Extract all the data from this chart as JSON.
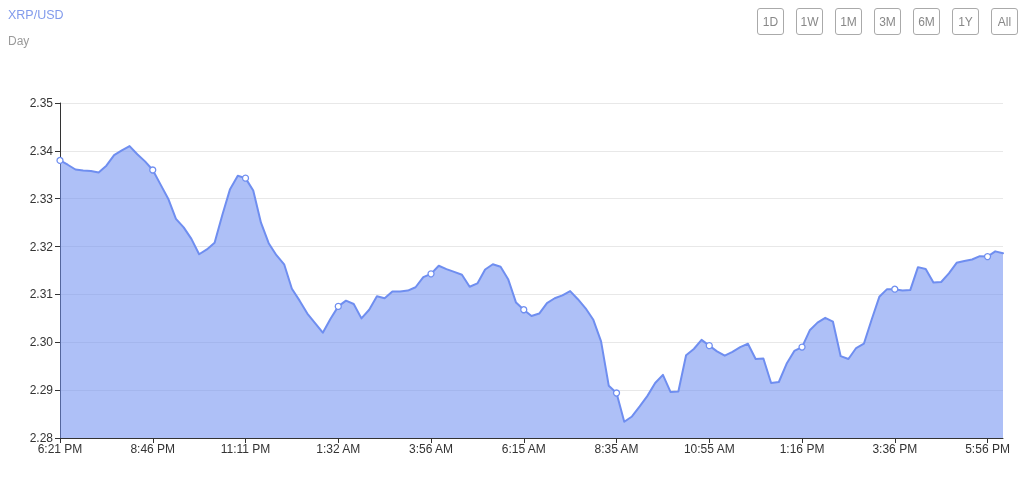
{
  "chart_data": {
    "type": "area",
    "title": "XRP/USD",
    "subtitle": "Day",
    "annotations": [
      "1D",
      "1W",
      "1M",
      "3M",
      "6M",
      "1Y",
      "All"
    ],
    "categories": [
      "6:21 PM",
      null,
      null,
      null,
      null,
      null,
      null,
      null,
      null,
      null,
      null,
      null,
      "8:46 PM",
      null,
      null,
      null,
      null,
      null,
      null,
      null,
      null,
      null,
      null,
      null,
      "11:11 PM",
      null,
      null,
      null,
      null,
      null,
      null,
      null,
      null,
      null,
      null,
      null,
      "1:32 AM",
      null,
      null,
      null,
      null,
      null,
      null,
      null,
      null,
      null,
      null,
      null,
      "3:56 AM",
      null,
      null,
      null,
      null,
      null,
      null,
      null,
      null,
      null,
      null,
      null,
      "6:15 AM",
      null,
      null,
      null,
      null,
      null,
      null,
      null,
      null,
      null,
      null,
      null,
      "8:35 AM",
      null,
      null,
      null,
      null,
      null,
      null,
      null,
      null,
      null,
      null,
      null,
      "10:55 AM",
      null,
      null,
      null,
      null,
      null,
      null,
      null,
      null,
      null,
      null,
      null,
      "1:16 PM",
      null,
      null,
      null,
      null,
      null,
      null,
      null,
      null,
      null,
      null,
      null,
      "3:36 PM",
      null,
      null,
      null,
      null,
      null,
      null,
      null,
      null,
      null,
      null,
      null,
      "5:56 PM",
      null,
      null
    ],
    "ylim": [
      2.28,
      2.35
    ],
    "yticks": [
      2.28,
      2.29,
      {
        "value": 2.3,
        "label": "2.30"
      },
      2.31,
      2.32,
      2.33,
      2.34,
      2.35
    ],
    "grid": "y",
    "series": [
      {
        "color": "#6f8ef0",
        "marker": "none",
        "values": [
          2.338,
          2.3371,
          2.3361,
          2.3359,
          2.3358,
          2.3355,
          2.3369,
          2.3391,
          2.3401,
          2.341,
          2.3393,
          2.3378,
          2.336,
          2.333,
          2.33,
          2.3258,
          2.324,
          2.3216,
          2.3184,
          2.3194,
          2.3208,
          2.3266,
          2.332,
          2.3348,
          2.3343,
          2.3317,
          2.325,
          2.3207,
          2.3182,
          2.3163,
          2.3112,
          2.3087,
          2.306,
          2.304,
          2.302,
          2.3049,
          2.3075,
          2.3087,
          2.308,
          2.305,
          2.3068,
          2.3096,
          2.3092,
          2.3106,
          2.3106,
          2.3108,
          2.3115,
          2.3136,
          2.3143,
          2.316,
          2.3153,
          2.3147,
          2.3141,
          2.3116,
          2.3123,
          2.3152,
          2.3163,
          2.3158,
          2.3131,
          2.3083,
          2.3068,
          2.3055,
          2.306,
          2.3082,
          2.3092,
          2.3098,
          2.3107,
          2.309,
          2.3071,
          2.3047,
          2.3002,
          2.2909,
          2.2894,
          2.2834,
          2.2845,
          2.2866,
          2.2888,
          2.2915,
          2.2932,
          2.2896,
          2.2897,
          2.2973,
          2.2986,
          2.3005,
          2.2993,
          2.2981,
          2.2972,
          2.298,
          2.299,
          2.2997,
          2.2965,
          2.2966,
          2.2915,
          2.2917,
          2.2955,
          2.2982,
          2.299,
          2.3025,
          2.3041,
          2.3051,
          2.3043,
          2.2971,
          2.2965,
          2.2988,
          2.2997,
          2.3047,
          2.3095,
          2.3111,
          2.3111,
          2.3108,
          2.3109,
          2.3157,
          2.3153,
          2.3125,
          2.3126,
          2.3144,
          2.3166,
          2.317,
          2.3173,
          2.318,
          2.3179,
          2.319,
          2.3186
        ]
      },
      {
        "type": "scatter",
        "color": "#ffffff",
        "marker": "circle",
        "values": [
          2.338,
          null,
          null,
          null,
          null,
          null,
          null,
          null,
          null,
          null,
          null,
          null,
          2.336,
          null,
          null,
          null,
          null,
          null,
          null,
          null,
          null,
          null,
          null,
          null,
          2.3343,
          null,
          null,
          null,
          null,
          null,
          null,
          null,
          null,
          null,
          null,
          null,
          2.3075,
          null,
          null,
          null,
          null,
          null,
          null,
          null,
          null,
          null,
          null,
          null,
          2.3143,
          null,
          null,
          null,
          null,
          null,
          null,
          null,
          null,
          null,
          null,
          null,
          2.3068,
          null,
          null,
          null,
          null,
          null,
          null,
          null,
          null,
          null,
          null,
          null,
          2.2894,
          null,
          null,
          null,
          null,
          null,
          null,
          null,
          null,
          null,
          null,
          null,
          2.2993,
          null,
          null,
          null,
          null,
          null,
          null,
          null,
          null,
          null,
          null,
          null,
          2.299,
          null,
          null,
          null,
          null,
          null,
          null,
          null,
          null,
          null,
          null,
          null,
          2.3111,
          null,
          null,
          null,
          null,
          null,
          null,
          null,
          null,
          null,
          null,
          null,
          2.3179,
          null,
          null
        ]
      }
    ]
  }
}
